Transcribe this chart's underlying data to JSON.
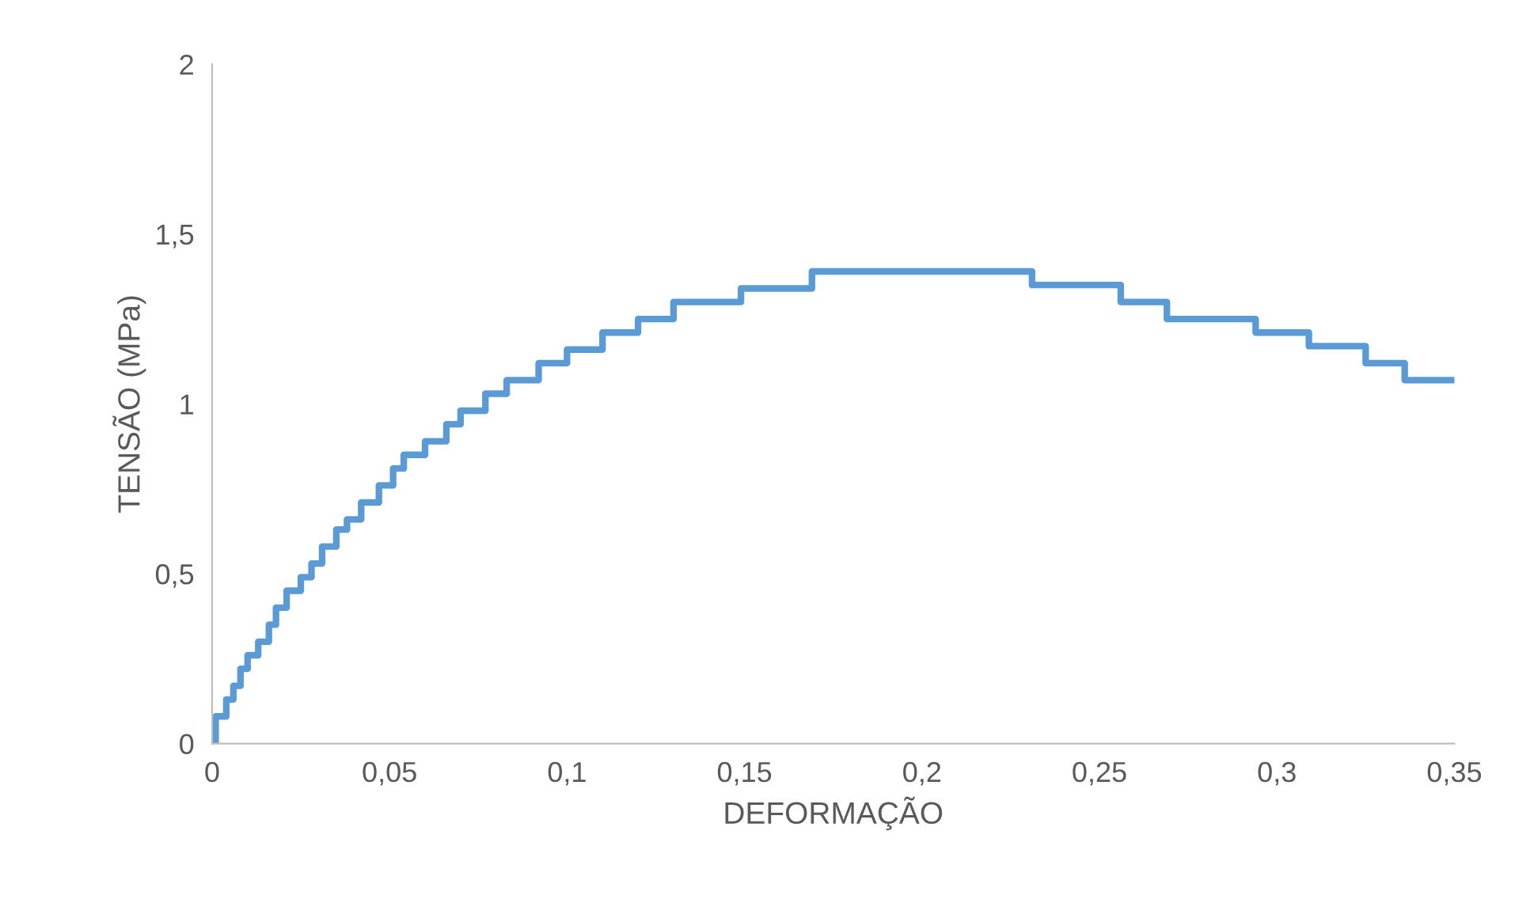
{
  "chart_data": {
    "type": "step",
    "xlabel": "DEFORMAÇÃO",
    "ylabel": "TENSÃO (MPa)",
    "x": [
      0,
      0.001,
      0.004,
      0.006,
      0.008,
      0.01,
      0.013,
      0.016,
      0.018,
      0.021,
      0.025,
      0.028,
      0.031,
      0.035,
      0.038,
      0.042,
      0.047,
      0.051,
      0.054,
      0.06,
      0.066,
      0.07,
      0.077,
      0.083,
      0.092,
      0.1,
      0.11,
      0.12,
      0.13,
      0.149,
      0.169,
      0.231,
      0.256,
      0.269,
      0.294,
      0.309,
      0.325,
      0.336,
      0.35
    ],
    "series": [
      {
        "color": "#5b9bd5",
        "values": [
          0,
          0.08,
          0.13,
          0.17,
          0.22,
          0.26,
          0.3,
          0.35,
          0.4,
          0.45,
          0.49,
          0.53,
          0.58,
          0.63,
          0.66,
          0.71,
          0.76,
          0.81,
          0.85,
          0.89,
          0.94,
          0.98,
          1.03,
          1.07,
          1.12,
          1.16,
          1.21,
          1.25,
          1.3,
          1.34,
          1.39,
          1.35,
          1.3,
          1.25,
          1.21,
          1.17,
          1.12,
          1.07,
          1.07
        ]
      }
    ],
    "xlim": [
      0,
      0.35
    ],
    "ylim": [
      0,
      2
    ],
    "xticks": [
      0,
      {
        "value": 0.05,
        "label": "0,05"
      },
      {
        "value": 0.1,
        "label": "0,1"
      },
      {
        "value": 0.15,
        "label": "0,15"
      },
      {
        "value": 0.2,
        "label": "0,2"
      },
      {
        "value": 0.25,
        "label": "0,25"
      },
      {
        "value": 0.3,
        "label": "0,3"
      },
      {
        "value": 0.35,
        "label": "0,35"
      }
    ],
    "yticks": [
      0,
      {
        "value": 0.5,
        "label": "0,5"
      },
      1,
      {
        "value": 1.5,
        "label": "1,5"
      },
      2
    ],
    "grid": false,
    "legend": false
  }
}
